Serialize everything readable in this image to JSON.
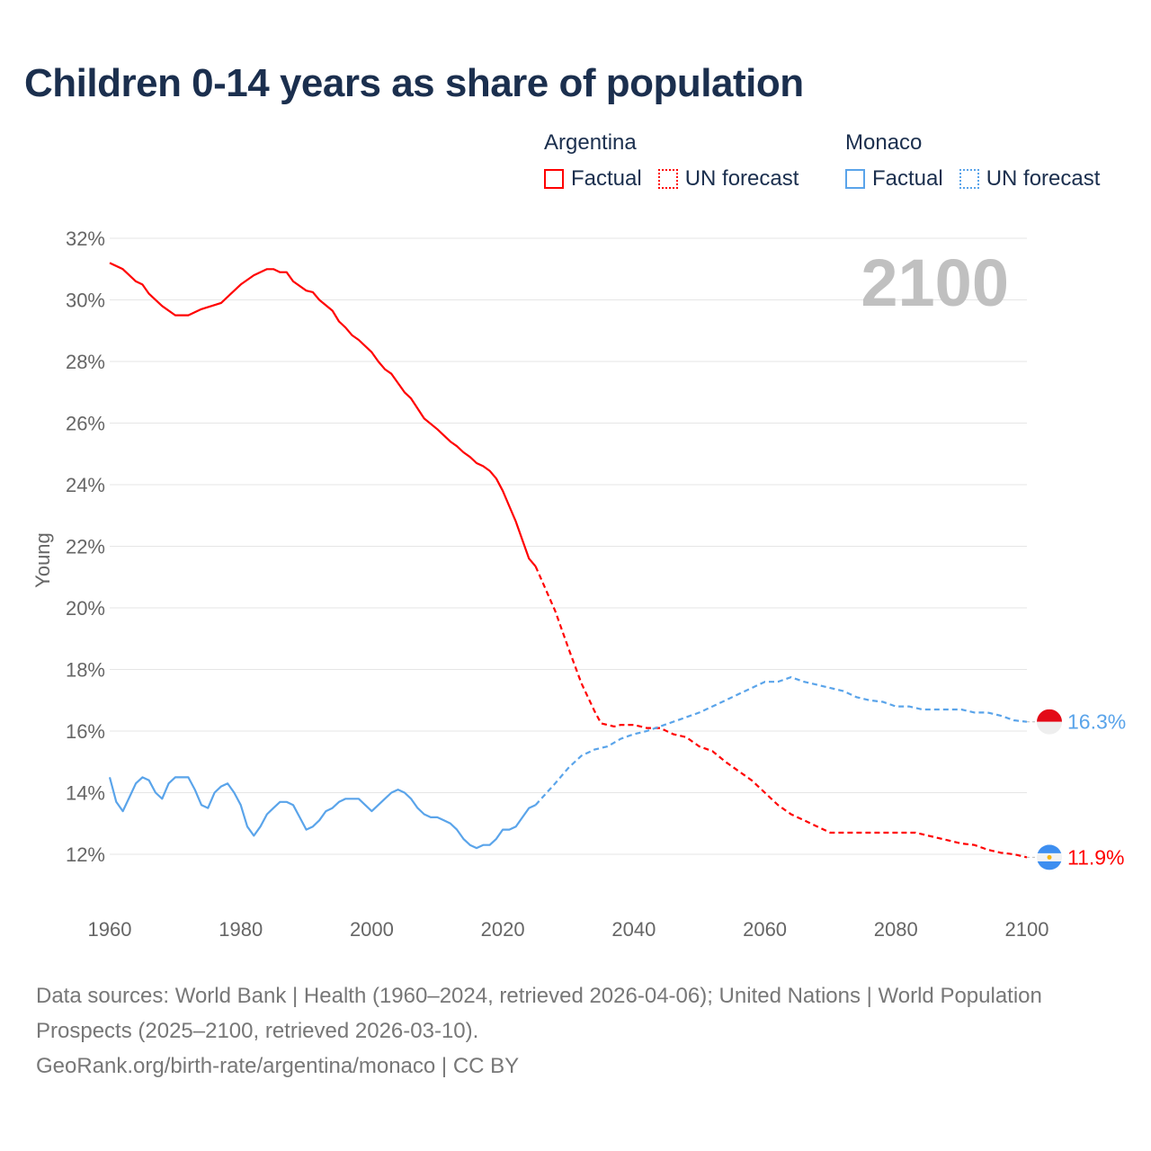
{
  "colors": {
    "argentina": "#ff0000",
    "monaco": "#5aa4ea",
    "title": "#1b2f4e",
    "grid": "#e6e6e6"
  },
  "chart_data": {
    "type": "line",
    "title": "Children 0-14 years as share of population",
    "ylabel": "Young",
    "xlabel": "",
    "xlim": [
      1960,
      2100
    ],
    "ylim": [
      11,
      32
    ],
    "grid": true,
    "x_ticks": [
      "1960",
      "1980",
      "2000",
      "2020",
      "2040",
      "2060",
      "2080",
      "2100"
    ],
    "y_ticks": [
      "32%",
      "30%",
      "28%",
      "26%",
      "24%",
      "22%",
      "20%",
      "18%",
      "16%",
      "14%",
      "12%"
    ],
    "year_label": "2100",
    "legend": {
      "placement": "top-right",
      "groups": [
        {
          "name": "Argentina",
          "factual": "Factual",
          "forecast": "UN forecast"
        },
        {
          "name": "Monaco",
          "factual": "Factual",
          "forecast": "UN forecast"
        }
      ]
    },
    "series": [
      {
        "name": "Argentina",
        "end_label": "11.9%",
        "factual": [
          [
            1960,
            31.2
          ],
          [
            1962,
            31.0
          ],
          [
            1964,
            30.6
          ],
          [
            1965,
            30.5
          ],
          [
            1966,
            30.2
          ],
          [
            1968,
            29.8
          ],
          [
            1970,
            29.5
          ],
          [
            1972,
            29.5
          ],
          [
            1974,
            29.7
          ],
          [
            1977,
            29.9
          ],
          [
            1980,
            30.5
          ],
          [
            1982,
            30.8
          ],
          [
            1984,
            31.0
          ],
          [
            1985,
            31.0
          ],
          [
            1986,
            30.9
          ],
          [
            1987,
            30.9
          ],
          [
            1988,
            30.6
          ],
          [
            1990,
            30.3
          ],
          [
            1991,
            30.25
          ],
          [
            1992,
            30.0
          ],
          [
            1994,
            29.65
          ],
          [
            1995,
            29.3
          ],
          [
            1996,
            29.1
          ],
          [
            1997,
            28.85
          ],
          [
            1998,
            28.7
          ],
          [
            2000,
            28.3
          ],
          [
            2001,
            28.0
          ],
          [
            2002,
            27.75
          ],
          [
            2003,
            27.6
          ],
          [
            2004,
            27.3
          ],
          [
            2005,
            27.0
          ],
          [
            2006,
            26.8
          ],
          [
            2008,
            26.15
          ],
          [
            2010,
            25.8
          ],
          [
            2012,
            25.4
          ],
          [
            2013,
            25.25
          ],
          [
            2014,
            25.05
          ],
          [
            2015,
            24.9
          ],
          [
            2016,
            24.7
          ],
          [
            2017,
            24.6
          ],
          [
            2018,
            24.45
          ],
          [
            2019,
            24.2
          ],
          [
            2020,
            23.8
          ],
          [
            2021,
            23.3
          ],
          [
            2022,
            22.8
          ],
          [
            2023,
            22.2
          ],
          [
            2024,
            21.6
          ],
          [
            2025,
            21.35
          ]
        ],
        "forecast": [
          [
            2025,
            21.35
          ],
          [
            2028,
            19.9
          ],
          [
            2030,
            18.7
          ],
          [
            2032,
            17.55
          ],
          [
            2034,
            16.65
          ],
          [
            2035,
            16.25
          ],
          [
            2037,
            16.15
          ],
          [
            2038,
            16.2
          ],
          [
            2040,
            16.2
          ],
          [
            2042,
            16.1
          ],
          [
            2044,
            16.1
          ],
          [
            2046,
            15.9
          ],
          [
            2048,
            15.8
          ],
          [
            2050,
            15.5
          ],
          [
            2052,
            15.35
          ],
          [
            2054,
            15.0
          ],
          [
            2056,
            14.7
          ],
          [
            2058,
            14.4
          ],
          [
            2060,
            14.0
          ],
          [
            2062,
            13.6
          ],
          [
            2064,
            13.3
          ],
          [
            2066,
            13.1
          ],
          [
            2068,
            12.9
          ],
          [
            2070,
            12.7
          ],
          [
            2075,
            12.7
          ],
          [
            2083,
            12.7
          ],
          [
            2085,
            12.6
          ],
          [
            2088,
            12.45
          ],
          [
            2090,
            12.35
          ],
          [
            2092,
            12.3
          ],
          [
            2094,
            12.15
          ],
          [
            2096,
            12.05
          ],
          [
            2098,
            12.0
          ],
          [
            2100,
            11.9
          ]
        ]
      },
      {
        "name": "Monaco",
        "end_label": "16.3%",
        "factual": [
          [
            1960,
            14.5
          ],
          [
            1961,
            13.7
          ],
          [
            1962,
            13.4
          ],
          [
            1963,
            13.85
          ],
          [
            1964,
            14.3
          ],
          [
            1965,
            14.5
          ],
          [
            1966,
            14.4
          ],
          [
            1967,
            14.0
          ],
          [
            1968,
            13.8
          ],
          [
            1969,
            14.3
          ],
          [
            1970,
            14.5
          ],
          [
            1971,
            14.5
          ],
          [
            1972,
            14.5
          ],
          [
            1973,
            14.1
          ],
          [
            1974,
            13.6
          ],
          [
            1975,
            13.5
          ],
          [
            1976,
            14.0
          ],
          [
            1977,
            14.2
          ],
          [
            1978,
            14.3
          ],
          [
            1979,
            14.0
          ],
          [
            1980,
            13.6
          ],
          [
            1981,
            12.9
          ],
          [
            1982,
            12.6
          ],
          [
            1983,
            12.9
          ],
          [
            1984,
            13.3
          ],
          [
            1985,
            13.5
          ],
          [
            1986,
            13.7
          ],
          [
            1987,
            13.7
          ],
          [
            1988,
            13.6
          ],
          [
            1989,
            13.2
          ],
          [
            1990,
            12.8
          ],
          [
            1991,
            12.9
          ],
          [
            1992,
            13.1
          ],
          [
            1993,
            13.4
          ],
          [
            1994,
            13.5
          ],
          [
            1995,
            13.7
          ],
          [
            1996,
            13.8
          ],
          [
            1997,
            13.8
          ],
          [
            1998,
            13.8
          ],
          [
            1999,
            13.6
          ],
          [
            2000,
            13.4
          ],
          [
            2001,
            13.6
          ],
          [
            2002,
            13.8
          ],
          [
            2003,
            14.0
          ],
          [
            2004,
            14.1
          ],
          [
            2005,
            14.0
          ],
          [
            2006,
            13.8
          ],
          [
            2007,
            13.5
          ],
          [
            2008,
            13.3
          ],
          [
            2009,
            13.2
          ],
          [
            2010,
            13.2
          ],
          [
            2011,
            13.1
          ],
          [
            2012,
            13.0
          ],
          [
            2013,
            12.8
          ],
          [
            2014,
            12.5
          ],
          [
            2015,
            12.3
          ],
          [
            2016,
            12.2
          ],
          [
            2017,
            12.3
          ],
          [
            2018,
            12.3
          ],
          [
            2019,
            12.5
          ],
          [
            2020,
            12.8
          ],
          [
            2021,
            12.8
          ],
          [
            2022,
            12.9
          ],
          [
            2023,
            13.2
          ],
          [
            2024,
            13.5
          ],
          [
            2025,
            13.6
          ]
        ],
        "forecast": [
          [
            2025,
            13.6
          ],
          [
            2028,
            14.3
          ],
          [
            2030,
            14.8
          ],
          [
            2032,
            15.2
          ],
          [
            2034,
            15.4
          ],
          [
            2036,
            15.5
          ],
          [
            2038,
            15.75
          ],
          [
            2040,
            15.9
          ],
          [
            2042,
            16.0
          ],
          [
            2044,
            16.15
          ],
          [
            2046,
            16.3
          ],
          [
            2048,
            16.45
          ],
          [
            2050,
            16.6
          ],
          [
            2052,
            16.8
          ],
          [
            2054,
            17.0
          ],
          [
            2056,
            17.2
          ],
          [
            2058,
            17.4
          ],
          [
            2060,
            17.6
          ],
          [
            2062,
            17.6
          ],
          [
            2064,
            17.75
          ],
          [
            2066,
            17.6
          ],
          [
            2068,
            17.5
          ],
          [
            2070,
            17.4
          ],
          [
            2072,
            17.3
          ],
          [
            2074,
            17.1
          ],
          [
            2076,
            17.0
          ],
          [
            2078,
            16.95
          ],
          [
            2080,
            16.8
          ],
          [
            2082,
            16.8
          ],
          [
            2084,
            16.7
          ],
          [
            2090,
            16.7
          ],
          [
            2092,
            16.6
          ],
          [
            2094,
            16.6
          ],
          [
            2096,
            16.5
          ],
          [
            2098,
            16.35
          ],
          [
            2100,
            16.3
          ]
        ]
      }
    ]
  },
  "footer": {
    "line1": "Data sources: World Bank | Health (1960–2024, retrieved 2026-04-06); United Nations | World Population Prospects (2025–2100, retrieved 2026-03-10).",
    "line2": "GeoRank.org/birth-rate/argentina/monaco | CC BY"
  }
}
